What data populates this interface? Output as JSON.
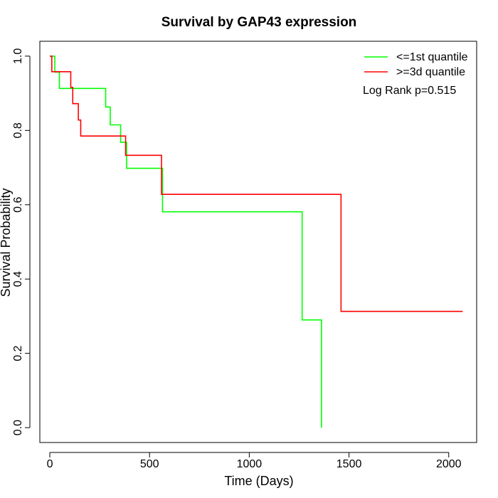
{
  "chart_data": {
    "type": "line",
    "subtype": "kaplan-meier step",
    "title": "Survival by GAP43 expression",
    "xlabel": "Time (Days)",
    "ylabel": "Survival Probability",
    "xlim": [
      -50,
      2140
    ],
    "ylim": [
      -0.04,
      1.04
    ],
    "xticks": [
      0,
      500,
      1000,
      1500,
      2000
    ],
    "xtick_labels": [
      "0",
      "500",
      "1000",
      "1500",
      "2000"
    ],
    "yticks": [
      0.0,
      0.2,
      0.4,
      0.6,
      0.8,
      1.0
    ],
    "ytick_labels": [
      "0.0",
      "0.2",
      "0.4",
      "0.6",
      "0.8",
      "1.0"
    ],
    "grid": false,
    "legend_position": "top-right",
    "annotation": "Log Rank p=0.515",
    "series": [
      {
        "name": "<=1st quantile",
        "color": "#00ff00",
        "x": [
          0,
          25,
          48,
          280,
          303,
          355,
          385,
          565,
          1265,
          1362
        ],
        "y": [
          1.0,
          0.957,
          0.913,
          0.863,
          0.815,
          0.768,
          0.698,
          0.581,
          0.29,
          0.0
        ]
      },
      {
        "name": ">=3d quantile",
        "color": "#ff0000",
        "x": [
          0,
          10,
          105,
          115,
          143,
          155,
          380,
          560,
          1460,
          2070
        ],
        "y": [
          1.0,
          0.958,
          0.916,
          0.872,
          0.828,
          0.785,
          0.733,
          0.628,
          0.313,
          0.313
        ]
      }
    ]
  }
}
